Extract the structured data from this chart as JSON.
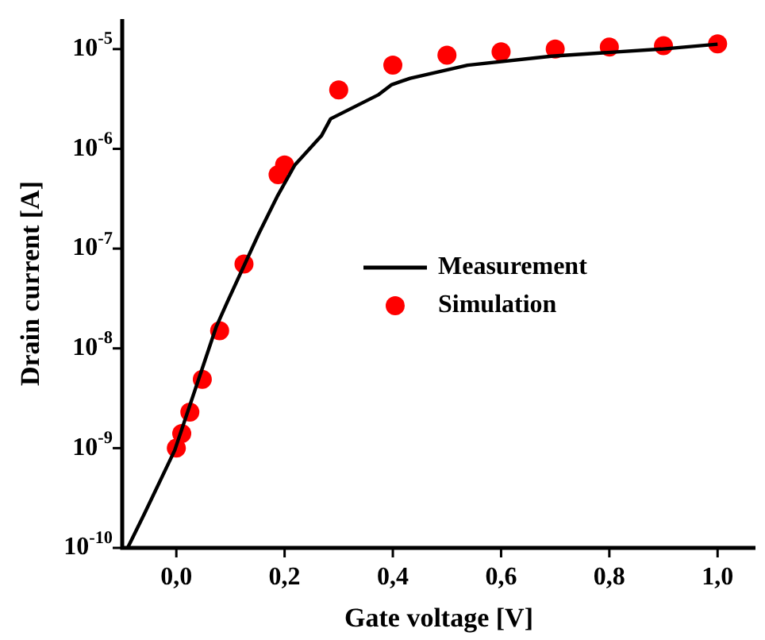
{
  "chart_data": {
    "type": "line",
    "xlabel": "Gate voltage [V]",
    "ylabel": "Drain current [A]",
    "log": "y",
    "xlim": [
      -0.1,
      1.07
    ],
    "xticks": [
      {
        "value": 0,
        "label": "0,0"
      },
      {
        "value": 0.2,
        "label": "0,2"
      },
      {
        "value": 0.4,
        "label": "0,4"
      },
      {
        "value": 0.6,
        "label": "0,6"
      },
      {
        "value": 0.8,
        "label": "0,8"
      },
      {
        "value": 1,
        "label": "1,0"
      }
    ],
    "ylim": [
      1e-10,
      2e-05
    ],
    "yticks": [
      {
        "value": 1e-10,
        "label": "10$^{-10}$"
      },
      {
        "value": 1e-09,
        "label": "10$^{-9}$"
      },
      {
        "value": 1e-08,
        "label": "10$^{-8}$"
      },
      {
        "value": 1e-07,
        "label": "10$^{-7}$"
      },
      {
        "value": 1e-06,
        "label": "10$^{-6}$"
      },
      {
        "value": 1e-05,
        "label": "10$^{-5}$"
      }
    ],
    "grid": false,
    "legend": "center",
    "series": [
      {
        "name": "Measurement",
        "type": "line",
        "color": "#000000",
        "line_style": "solid",
        "marker": "none",
        "x": [
          -0.09,
          -0.059,
          -0.003,
          0.05,
          0.074,
          0.094,
          0.152,
          0.186,
          0.219,
          0.268,
          0.285,
          0.374,
          0.398,
          0.432,
          0.538,
          0.693,
          0.896,
          1.0
        ],
        "values": [
          1e-10,
          2.2e-10,
          9.5e-10,
          6.8e-09,
          1.66e-08,
          2.9e-08,
          1.4e-07,
          3.3e-07,
          6.9e-07,
          1.35e-06,
          2e-06,
          3.5e-06,
          4.4e-06,
          5.1e-06,
          6.9e-06,
          8.5e-06,
          1e-05,
          1.12e-05
        ]
      },
      {
        "name": "Simulation",
        "type": "scatter",
        "color": "#ff0000",
        "marker": "circle",
        "x": [
          0,
          0.01,
          0.025,
          0.048,
          0.08,
          0.125,
          0.188,
          0.2,
          0.3,
          0.4,
          0.5,
          0.6,
          0.7,
          0.8,
          0.9,
          1.0
        ],
        "values": [
          1e-09,
          1.4e-09,
          2.3e-09,
          4.9e-09,
          1.5e-08,
          7e-08,
          5.5e-07,
          6.9e-07,
          3.9e-06,
          6.9e-06,
          8.7e-06,
          9.4e-06,
          1e-05,
          1.05e-05,
          1.08e-05,
          1.13e-05
        ]
      }
    ]
  }
}
